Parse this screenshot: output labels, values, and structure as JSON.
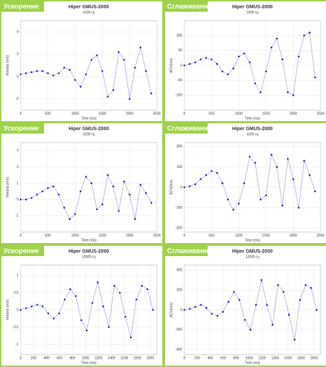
{
  "labels": [
    "Ускорение",
    "Сглаживание",
    "Ускорение",
    "Сглаживание",
    "Ускорение",
    "Сглаживание"
  ],
  "chart_data": [
    {
      "type": "scatter",
      "title": "Hiper GMUS-2000",
      "subtitle": "1600 гц",
      "x_label": "Time (ms)",
      "y_label": "Velocity (m/s)",
      "color": "#1f1fbf",
      "grid": true,
      "x": [
        0,
        100,
        200,
        300,
        400,
        500,
        600,
        700,
        800,
        900,
        1000,
        1100,
        1200,
        1300,
        1400,
        1500,
        1600,
        1700,
        1800,
        1900,
        2000,
        2100,
        2200,
        2300,
        2400
      ],
      "values": [
        0.2,
        0.3,
        0.4,
        0.5,
        0.5,
        0.3,
        0.1,
        0.3,
        0.8,
        0.6,
        -0.3,
        -0.9,
        0.2,
        1.5,
        1.9,
        0.5,
        -1.8,
        -1.2,
        2.2,
        1.5,
        -2.0,
        0.8,
        2.6,
        0.5,
        -1.5
      ],
      "xlim": [
        0,
        2500
      ],
      "xticks": [
        0,
        500,
        1000,
        1500,
        2000,
        2500
      ],
      "ylim": [
        -3,
        5
      ],
      "yticks": [
        -2,
        0,
        2,
        4
      ]
    },
    {
      "type": "scatter",
      "title": "Hiper GMUS-2000",
      "subtitle": "1600 гц",
      "x_label": "Time (ms)",
      "y_label": "ACV(m/s)",
      "color": "#1f1fbf",
      "grid": true,
      "x": [
        0,
        100,
        200,
        300,
        400,
        500,
        600,
        700,
        800,
        900,
        1000,
        1100,
        1200,
        1300,
        1400,
        1500,
        1600,
        1700,
        1800,
        1900,
        2000,
        2100,
        2200,
        2300,
        2400
      ],
      "values": [
        0,
        5,
        10,
        20,
        25,
        20,
        5,
        -20,
        -30,
        -10,
        30,
        40,
        10,
        -60,
        -90,
        -20,
        60,
        90,
        20,
        -90,
        -100,
        30,
        100,
        110,
        -40
      ],
      "xlim": [
        0,
        2500
      ],
      "xticks": [
        0,
        500,
        1000,
        1500,
        2000,
        2500
      ],
      "ylim": [
        -150,
        150
      ],
      "yticks": [
        -100,
        -50,
        0,
        50,
        100
      ]
    },
    {
      "type": "scatter",
      "title": "Hiper GMUS-2000",
      "subtitle": "3200 гц",
      "x_label": "Time (ms)",
      "y_label": "Velocity (m/s)",
      "color": "#1f1fbf",
      "grid": true,
      "x": [
        0,
        100,
        200,
        300,
        400,
        500,
        600,
        700,
        800,
        900,
        1000,
        1100,
        1200,
        1300,
        1400,
        1500,
        1600,
        1700,
        1800,
        1900,
        2000,
        2100,
        2200,
        2300,
        2400
      ],
      "values": [
        0,
        0,
        0.1,
        0.3,
        0.5,
        0.7,
        0.8,
        0.3,
        -0.5,
        -1.2,
        -0.9,
        0.5,
        1.4,
        1.0,
        -0.6,
        -0.3,
        1.5,
        0.8,
        -0.7,
        1.1,
        0.3,
        -1.2,
        0.9,
        0.4,
        -0.2
      ],
      "xlim": [
        0,
        2500
      ],
      "xticks": [
        0,
        500,
        1000,
        1500,
        2000,
        2500
      ],
      "ylim": [
        -2,
        3.5
      ],
      "yticks": [
        -1,
        0,
        1,
        2,
        3
      ]
    },
    {
      "type": "scatter",
      "title": "Hiper GMUS-2000",
      "subtitle": "3200 гц",
      "x_label": "Time (ms)",
      "y_label": "ACV(m/s)",
      "color": "#1f1fbf",
      "grid": true,
      "x": [
        0,
        100,
        200,
        300,
        400,
        500,
        600,
        700,
        800,
        900,
        1000,
        1100,
        1200,
        1300,
        1400,
        1500,
        1600,
        1700,
        1800,
        1900,
        2000,
        2100,
        2200,
        2300,
        2400
      ],
      "values": [
        0,
        5,
        15,
        40,
        60,
        80,
        70,
        20,
        -60,
        -110,
        -80,
        20,
        150,
        120,
        -60,
        -40,
        160,
        100,
        -90,
        140,
        40,
        -100,
        130,
        60,
        -20
      ],
      "xlim": [
        0,
        2500
      ],
      "xticks": [
        0,
        500,
        1000,
        1500,
        2000,
        2500
      ],
      "ylim": [
        -220,
        220
      ],
      "yticks": [
        -200,
        -100,
        0,
        100,
        200
      ]
    },
    {
      "type": "scatter",
      "title": "Hiper GMUS-2000",
      "subtitle": "12000 гц",
      "x_label": "Time (ms)",
      "y_label": "Velocity (m/s)",
      "color": "#1f1fbf",
      "grid": true,
      "x": [
        0,
        85,
        170,
        255,
        340,
        425,
        510,
        595,
        680,
        765,
        850,
        935,
        1020,
        1105,
        1190,
        1275,
        1360,
        1445,
        1530,
        1615,
        1700,
        1785,
        1870,
        1955,
        2040
      ],
      "values": [
        0,
        0.05,
        0.1,
        0.15,
        0.1,
        -0.1,
        -0.25,
        -0.1,
        0.3,
        0.6,
        0.4,
        -0.3,
        -0.6,
        0.2,
        0.8,
        0.1,
        -0.5,
        0.7,
        0.5,
        -0.2,
        -0.8,
        0.3,
        0.7,
        0.6,
        0
      ],
      "xlim": [
        0,
        2100
      ],
      "xticks": [
        0,
        200,
        400,
        600,
        800,
        1000,
        1200,
        1400,
        1600,
        1800,
        2000
      ],
      "ylim": [
        -1.3,
        1.3
      ],
      "yticks": [
        -1,
        -0.5,
        0,
        0.5,
        1
      ]
    },
    {
      "type": "scatter",
      "title": "Hiper GMUS-2000",
      "subtitle": "12000 гц",
      "x_label": "Time (ms)",
      "y_label": "ACV(m/s)",
      "color": "#1f1fbf",
      "grid": true,
      "x": [
        0,
        85,
        170,
        255,
        340,
        425,
        510,
        595,
        680,
        765,
        850,
        935,
        1020,
        1105,
        1190,
        1275,
        1360,
        1445,
        1530,
        1615,
        1700,
        1785,
        1870,
        1955,
        2040
      ],
      "values": [
        0,
        10,
        30,
        50,
        20,
        -40,
        -60,
        -20,
        80,
        180,
        100,
        -100,
        -200,
        50,
        300,
        50,
        -150,
        250,
        180,
        -50,
        -300,
        100,
        250,
        220,
        0
      ],
      "xlim": [
        0,
        2100
      ],
      "xticks": [
        0,
        200,
        400,
        600,
        800,
        1000,
        1200,
        1400,
        1600,
        1800,
        2000
      ],
      "ylim": [
        -450,
        450
      ],
      "yticks": [
        -400,
        -200,
        0,
        200,
        400
      ]
    }
  ]
}
